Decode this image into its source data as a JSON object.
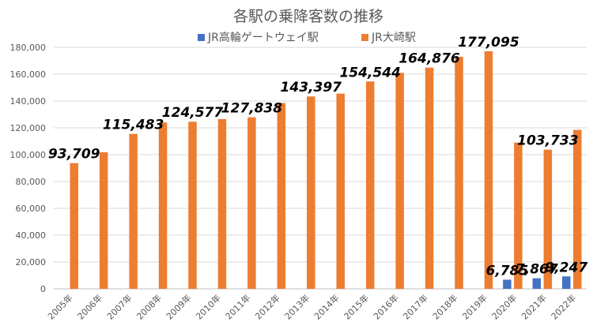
{
  "chart_data": {
    "type": "bar",
    "title": "各駅の乗降客数の推移",
    "categories": [
      "2005年",
      "2006年",
      "2007年",
      "2008年",
      "2009年",
      "2010年",
      "2011年",
      "2012年",
      "2013年",
      "2014年",
      "2015年",
      "2016年",
      "2017年",
      "2018年",
      "2019年",
      "2020年",
      "2021年",
      "2022年"
    ],
    "series": [
      {
        "name": "JR高輪ゲートウェイ駅",
        "color": "#4472c4",
        "values": [
          null,
          null,
          null,
          null,
          null,
          null,
          null,
          null,
          null,
          null,
          null,
          null,
          null,
          null,
          null,
          6785,
          7867,
          9247
        ]
      },
      {
        "name": "JR大崎駅",
        "color": "#ed7d31",
        "values": [
          93709,
          101800,
          115483,
          124000,
          124577,
          126500,
          127838,
          138500,
          143397,
          145500,
          154544,
          161000,
          164876,
          173000,
          177095,
          109000,
          103733,
          118500
        ]
      }
    ],
    "data_labels": [
      {
        "series": 1,
        "index": 0,
        "text": "93,709"
      },
      {
        "series": 1,
        "index": 2,
        "text": "115,483"
      },
      {
        "series": 1,
        "index": 4,
        "text": "124,577"
      },
      {
        "series": 1,
        "index": 6,
        "text": "127,838"
      },
      {
        "series": 1,
        "index": 8,
        "text": "143,397"
      },
      {
        "series": 1,
        "index": 10,
        "text": "154,544"
      },
      {
        "series": 1,
        "index": 12,
        "text": "164,876"
      },
      {
        "series": 1,
        "index": 14,
        "text": "177,095"
      },
      {
        "series": 1,
        "index": 16,
        "text": "103,733"
      },
      {
        "series": 0,
        "index": 15,
        "text": "6,785"
      },
      {
        "series": 0,
        "index": 16,
        "text": "7,867"
      },
      {
        "series": 0,
        "index": 17,
        "text": "9,247"
      }
    ],
    "ylim": [
      0,
      180000
    ],
    "yticks": [
      "0",
      "20,000",
      "40,000",
      "60,000",
      "80,000",
      "100,000",
      "120,000",
      "140,000",
      "160,000",
      "180,000"
    ],
    "ytick_values": [
      0,
      20000,
      40000,
      60000,
      80000,
      100000,
      120000,
      140000,
      160000,
      180000
    ],
    "grid": true,
    "legend_position": "top",
    "xlabel": "",
    "ylabel": ""
  }
}
